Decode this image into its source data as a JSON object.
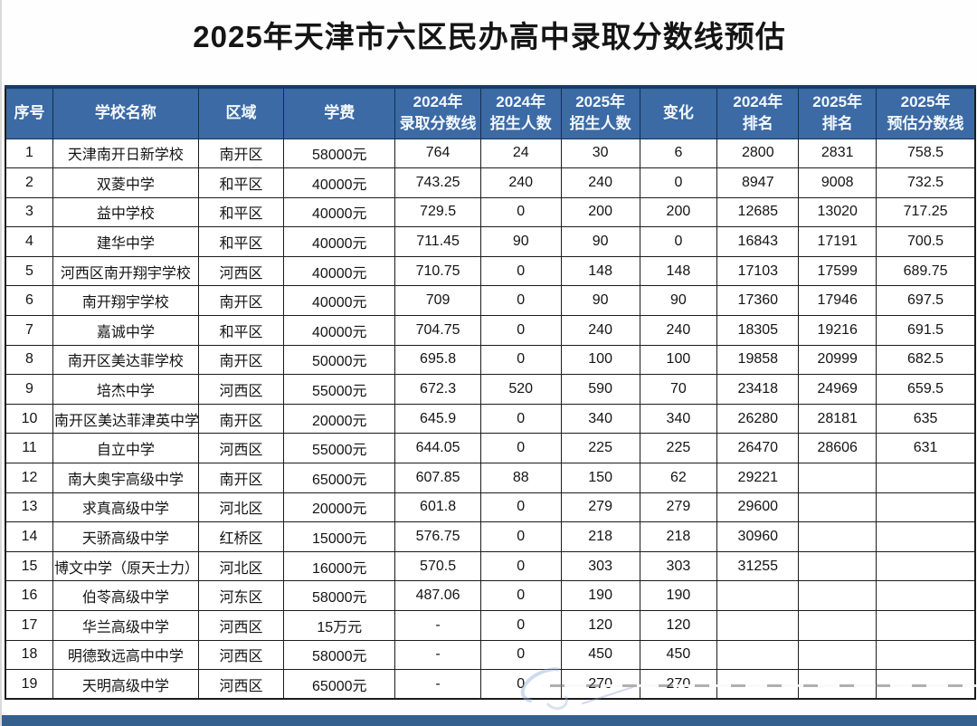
{
  "title": "2025年天津市六区民办高中录取分数线预估",
  "colors": {
    "header_bg": "#3b6aa5",
    "header_text": "#f5f8fc",
    "table_top_border": "#173a63",
    "grid_border": "#1c1c1c",
    "bottom_bar": "#33608f",
    "body_text": "#141414",
    "page_bg": "#fefefe"
  },
  "table": {
    "columns": [
      {
        "key": "index",
        "label": "序号"
      },
      {
        "key": "school",
        "label": "学校名称"
      },
      {
        "key": "district",
        "label": "区域"
      },
      {
        "key": "fee",
        "label": "学费"
      },
      {
        "key": "score2024",
        "label": "2024年\n录取分数线"
      },
      {
        "key": "enroll2024",
        "label": "2024年\n招生人数"
      },
      {
        "key": "enroll2025",
        "label": "2025年\n招生人数"
      },
      {
        "key": "change",
        "label": "变化"
      },
      {
        "key": "rank2024",
        "label": "2024年\n排名"
      },
      {
        "key": "rank2025",
        "label": "2025年\n排名"
      },
      {
        "key": "score2025",
        "label": "2025年\n预估分数线"
      }
    ],
    "rows": [
      [
        "1",
        "天津南开日新学校",
        "南开区",
        "58000元",
        "764",
        "24",
        "30",
        "6",
        "2800",
        "2831",
        "758.5"
      ],
      [
        "2",
        "双菱中学",
        "和平区",
        "40000元",
        "743.25",
        "240",
        "240",
        "0",
        "8947",
        "9008",
        "732.5"
      ],
      [
        "3",
        "益中学校",
        "和平区",
        "40000元",
        "729.5",
        "0",
        "200",
        "200",
        "12685",
        "13020",
        "717.25"
      ],
      [
        "4",
        "建华中学",
        "和平区",
        "40000元",
        "711.45",
        "90",
        "90",
        "0",
        "16843",
        "17191",
        "700.5"
      ],
      [
        "5",
        "河西区南开翔宇学校",
        "河西区",
        "40000元",
        "710.75",
        "0",
        "148",
        "148",
        "17103",
        "17599",
        "689.75"
      ],
      [
        "6",
        "南开翔宇学校",
        "南开区",
        "40000元",
        "709",
        "0",
        "90",
        "90",
        "17360",
        "17946",
        "697.5"
      ],
      [
        "7",
        "嘉诚中学",
        "和平区",
        "40000元",
        "704.75",
        "0",
        "240",
        "240",
        "18305",
        "19216",
        "691.5"
      ],
      [
        "8",
        "南开区美达菲学校",
        "南开区",
        "50000元",
        "695.8",
        "0",
        "100",
        "100",
        "19858",
        "20999",
        "682.5"
      ],
      [
        "9",
        "培杰中学",
        "河西区",
        "55000元",
        "672.3",
        "520",
        "590",
        "70",
        "23418",
        "24969",
        "659.5"
      ],
      [
        "10",
        "南开区美达菲津英中学",
        "南开区",
        "20000元",
        "645.9",
        "0",
        "340",
        "340",
        "26280",
        "28181",
        "635"
      ],
      [
        "11",
        "自立中学",
        "河西区",
        "55000元",
        "644.05",
        "0",
        "225",
        "225",
        "26470",
        "28606",
        "631"
      ],
      [
        "12",
        "南大奥宇高级中学",
        "南开区",
        "65000元",
        "607.85",
        "88",
        "150",
        "62",
        "29221",
        "",
        ""
      ],
      [
        "13",
        "求真高级中学",
        "河北区",
        "20000元",
        "601.8",
        "0",
        "279",
        "279",
        "29600",
        "",
        ""
      ],
      [
        "14",
        "天骄高级中学",
        "红桥区",
        "15000元",
        "576.75",
        "0",
        "218",
        "218",
        "30960",
        "",
        ""
      ],
      [
        "15",
        "博文中学（原天士力）",
        "河北区",
        "16000元",
        "570.5",
        "0",
        "303",
        "303",
        "31255",
        "",
        ""
      ],
      [
        "16",
        "伯苓高级中学",
        "河东区",
        "58000元",
        "487.06",
        "0",
        "190",
        "190",
        "",
        "",
        ""
      ],
      [
        "17",
        "华兰高级中学",
        "河西区",
        "15万元",
        "-",
        "0",
        "120",
        "120",
        "",
        "",
        ""
      ],
      [
        "18",
        "明德致远高中中学",
        "河西区",
        "58000元",
        "-",
        "0",
        "450",
        "450",
        "",
        "",
        ""
      ],
      [
        "19",
        "天明高级中学",
        "河西区",
        "65000元",
        "-",
        "0",
        "270",
        "270",
        "",
        "",
        ""
      ]
    ]
  }
}
